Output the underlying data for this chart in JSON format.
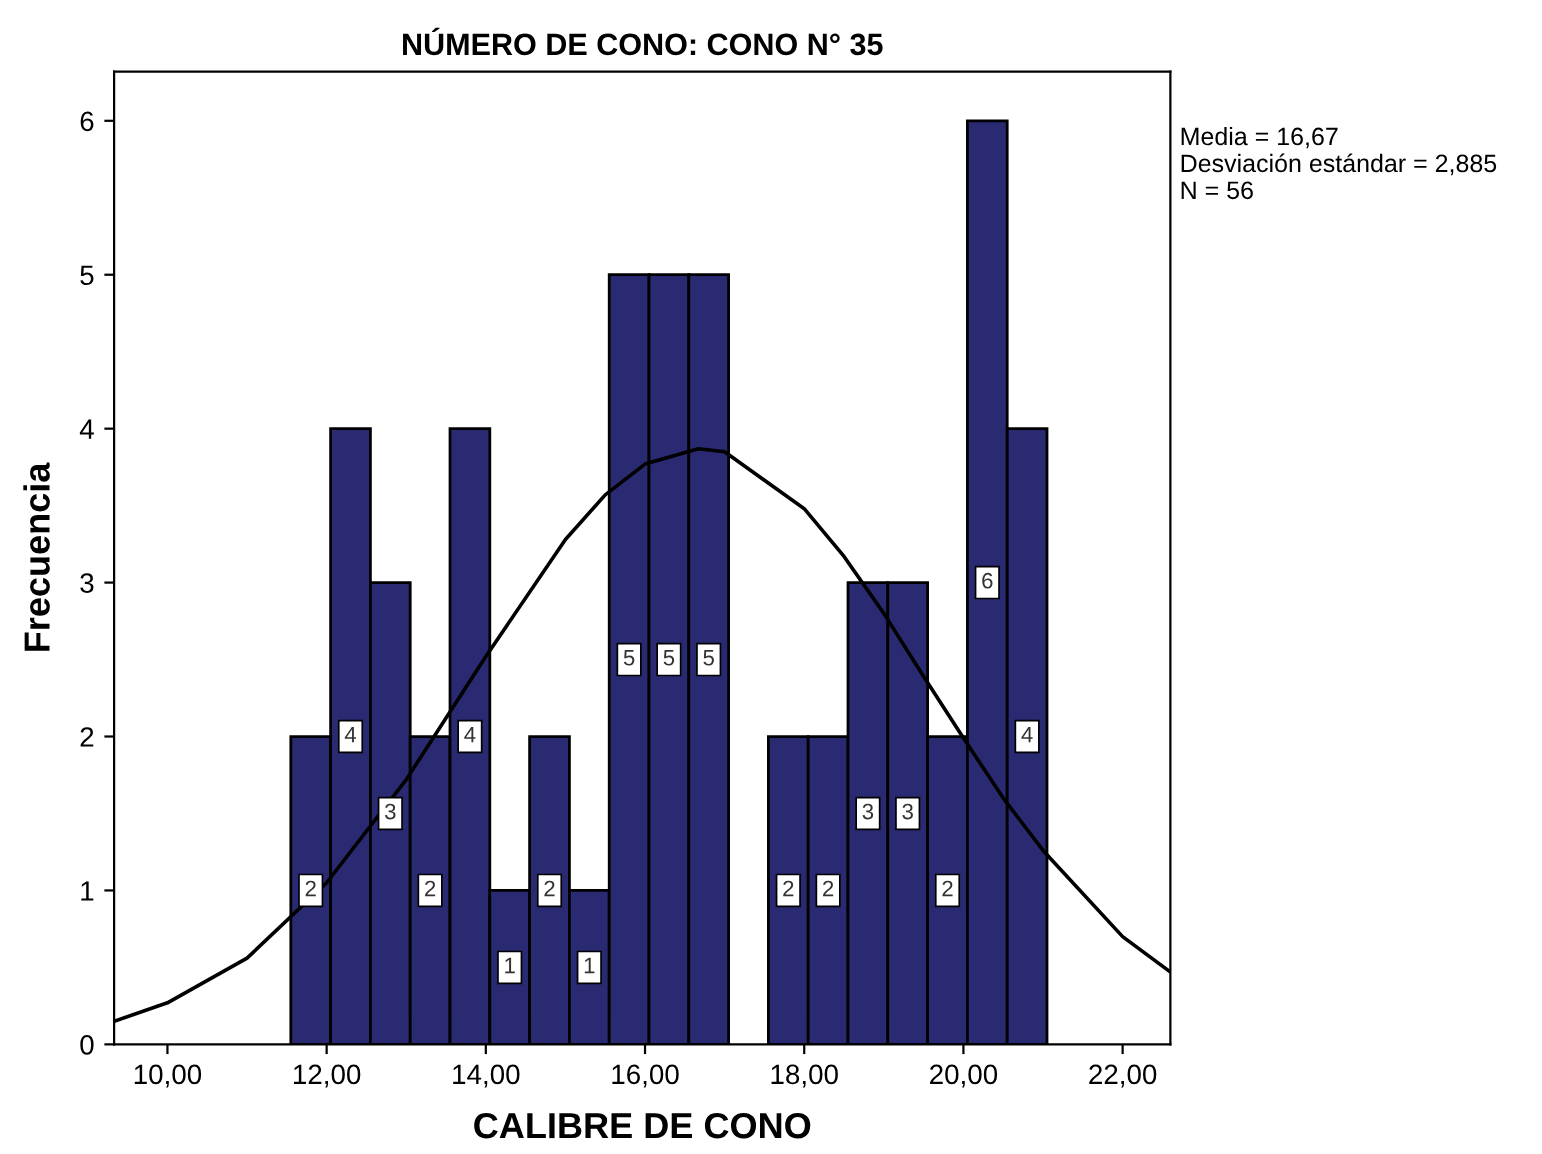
{
  "chart_data": {
    "type": "histogram",
    "title": "NÚMERO DE CONO: CONO N° 35",
    "xlabel": "CALIBRE DE CONO",
    "ylabel": "Frecuencia",
    "bins": [
      11.55,
      12.05,
      12.55,
      13.05,
      13.55,
      14.05,
      14.55,
      15.05,
      15.55,
      16.05,
      16.55,
      17.05,
      17.55,
      18.05,
      18.55,
      19.05,
      19.55,
      20.05,
      20.55,
      21.05
    ],
    "values": [
      2,
      4,
      3,
      2,
      4,
      1,
      2,
      1,
      5,
      5,
      5,
      0,
      2,
      2,
      3,
      3,
      2,
      6,
      4
    ],
    "value_labels": [
      "2",
      "4",
      "3",
      "2",
      "4",
      "1",
      "2",
      "1",
      "5",
      "5",
      "5",
      null,
      "2",
      "2",
      "3",
      "3",
      "2",
      "6",
      "4"
    ],
    "color": "#2a2a72",
    "series": [
      {
        "type": "line",
        "color": "#000000",
        "x": [
          9.33,
          10,
          11,
          12,
          13,
          13.5,
          14,
          15,
          15.5,
          16,
          16.67,
          17,
          18,
          18.5,
          19,
          19.5,
          20,
          20.5,
          21,
          22,
          22.6
        ],
        "values": [
          0.15,
          0.27,
          0.56,
          1.05,
          1.72,
          2.12,
          2.52,
          3.28,
          3.57,
          3.77,
          3.87,
          3.85,
          3.48,
          3.17,
          2.8,
          2.39,
          1.99,
          1.6,
          1.26,
          0.7,
          0.47
        ]
      }
    ],
    "xlim": [
      9.33,
      22.6
    ],
    "ylim": [
      0,
      6.32
    ],
    "xticks": [
      {
        "value": 10,
        "label": "10,00"
      },
      {
        "value": 12,
        "label": "12,00"
      },
      {
        "value": 14,
        "label": "14,00"
      },
      {
        "value": 16,
        "label": "16,00"
      },
      {
        "value": 18,
        "label": "18,00"
      },
      {
        "value": 20,
        "label": "20,00"
      },
      {
        "value": 22,
        "label": "22,00"
      }
    ],
    "yticks": [
      0,
      1,
      2,
      3,
      4,
      5,
      6
    ],
    "grid": false,
    "legend": false,
    "annotations": [
      "Media = 16,67\nDesviación estándar = 2,885\nN = 56"
    ]
  }
}
